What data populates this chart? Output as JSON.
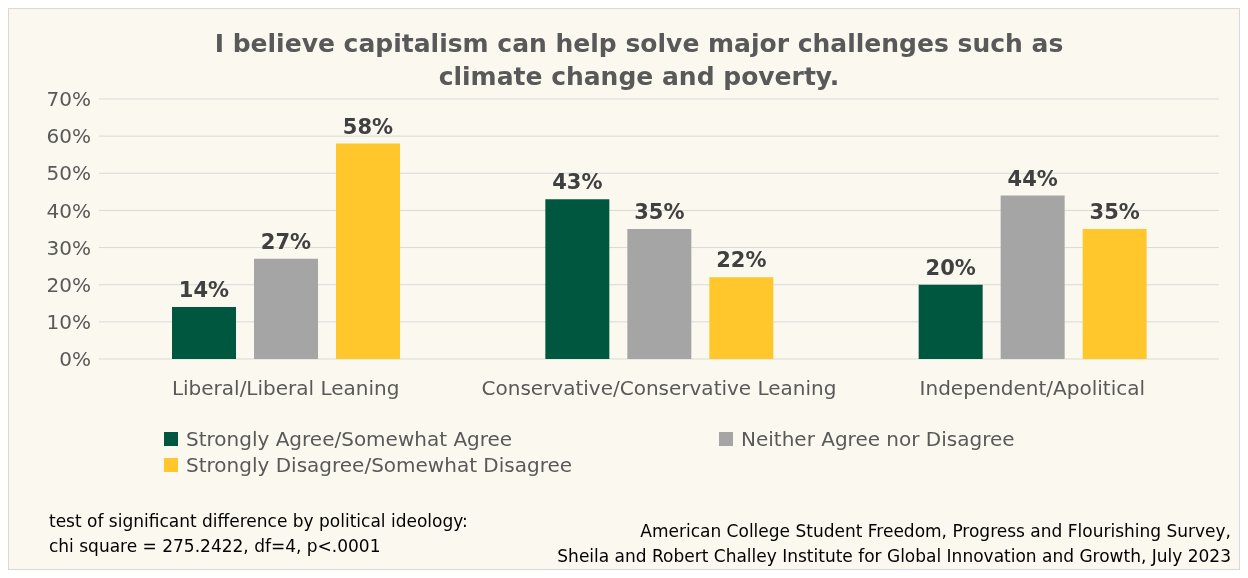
{
  "chart_data": {
    "type": "bar",
    "title": "I believe capitalism can help solve major challenges such as climate change and poverty.",
    "categories": [
      "Liberal/Liberal Leaning",
      "Conservative/Conservative Leaning",
      "Independent/Apolitical"
    ],
    "series": [
      {
        "name": "Strongly Agree/Somewhat Agree",
        "color": "#00573f",
        "values": [
          14,
          43,
          20
        ]
      },
      {
        "name": "Neither Agree nor Disagree",
        "color": "#a5a5a5",
        "values": [
          27,
          35,
          44
        ]
      },
      {
        "name": "Strongly Disagree/Somewhat Disagree",
        "color": "#ffc72c",
        "values": [
          58,
          22,
          35
        ]
      }
    ],
    "ylim": [
      0,
      70
    ],
    "yticks": [
      {
        "value": 0,
        "label": "0%"
      },
      {
        "value": 10,
        "label": "10%"
      },
      {
        "value": 20,
        "label": "20%"
      },
      {
        "value": 30,
        "label": "30%"
      },
      {
        "value": 40,
        "label": "40%"
      },
      {
        "value": 50,
        "label": "50%"
      },
      {
        "value": 60,
        "label": "60%"
      },
      {
        "value": 70,
        "label": "70%"
      }
    ],
    "value_labels": [
      [
        "14%",
        "43%",
        "20%"
      ],
      [
        "27%",
        "35%",
        "44%"
      ],
      [
        "58%",
        "22%",
        "35%"
      ]
    ],
    "grid": "y",
    "legend": "bottom",
    "annotations": [
      "test of significant difference by political ideology:\nchi square = 275.2422, df=4, p<.0001",
      "American College Student Freedom, Progress and Flourishing Survey,\nSheila and Robert Challey Institute for Global Innovation and Growth, July 2023"
    ]
  }
}
